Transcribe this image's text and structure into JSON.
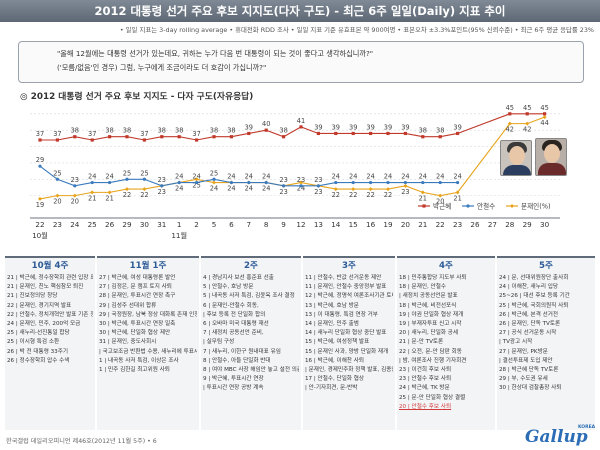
{
  "header": {
    "title": "2012 대통령 선거 주요 후보 지지도(다자 구도) - 최근 6주 일일(Daily) 지표 추이",
    "method_note": "• 일일 지표는 3-day rolling average • 휴대전화 RDD 조사 • 일일 지표 기준 유효표본 약 900여명 • 표본오차 ±3.3%포인트(95% 신뢰수준) • 최근 6주 평균 응답률 23%"
  },
  "question": {
    "line1": "\"올해 12월에는 대통령 선거가 있는데요, 귀하는 누가 다음 번 대통령이 되는 것이 좋다고 생각하십니까?\"",
    "line2": "('모름/없음'인 경우) 그럼, 누구에게 조금이라도 더 호감이 가십니까?\""
  },
  "chart_title": "◎ 2012 대통령 선거 주요 후보 지지도 - 다자 구도(자유응답)",
  "chart_data": {
    "type": "line",
    "categories": [
      "22",
      "23",
      "24",
      "25",
      "26",
      "29",
      "30",
      "31",
      "1",
      "2",
      "5",
      "6",
      "7",
      "8",
      "9",
      "12",
      "13",
      "14",
      "15",
      "16",
      "19",
      "20",
      "21",
      "22",
      "23",
      "26",
      "27",
      "28",
      "29",
      "30"
    ],
    "month_labels": [
      {
        "text": "10월",
        "index": 0
      },
      {
        "text": "11월",
        "index": 8
      }
    ],
    "ylim": [
      15,
      48
    ],
    "series": [
      {
        "name": "박근혜",
        "color": "#c0392b",
        "marker": "square",
        "values": [
          37,
          37,
          38,
          37,
          38,
          38,
          37,
          38,
          38,
          37,
          38,
          38,
          39,
          40,
          38,
          41,
          39,
          39,
          39,
          39,
          39,
          39,
          38,
          38,
          39,
          null,
          null,
          45,
          45,
          45
        ]
      },
      {
        "name": "문재인",
        "color": "#e8a31c",
        "marker": "diamond",
        "values": [
          19,
          20,
          20,
          21,
          21,
          22,
          22,
          23,
          24,
          25,
          24,
          24,
          24,
          24,
          23,
          24,
          23,
          22,
          22,
          22,
          22,
          23,
          21,
          20,
          21,
          null,
          null,
          42,
          42,
          44
        ]
      },
      {
        "name": "안철수",
        "color": "#3a7abd",
        "marker": "circle",
        "values": [
          29,
          25,
          23,
          24,
          24,
          25,
          25,
          23,
          24,
          24,
          25,
          24,
          24,
          24,
          23,
          23,
          23,
          24,
          24,
          24,
          24,
          24,
          24,
          24,
          24,
          null,
          null,
          null,
          null,
          null
        ]
      }
    ],
    "legend": [
      "박근혜",
      "안철수",
      "문재인(%)"
    ]
  },
  "weeks": [
    {
      "title": "10월 4주",
      "items": [
        "21 | 박근혜, 정수장학회 관련 입장 표명, 최필립 사퇴 촉구",
        "21 | 문재인, 친노 핵심참모 퇴진",
        "21 | 진보정의당 창당",
        "22 | 문재인, 경기지역 발표",
        "22 | 안철수, 정치개혁안 발표 기존 정치권 반발",
        "24 | 문재인, 민주, 200억 모금",
        "25 | 새누리-선진통일 합당",
        "25 | 이시형 특검 소환",
        "26 | 박 전 대통령 33주기",
        "26 | 정수장학회 압수 수색"
      ]
    },
    {
      "title": "11월 1주",
      "items": [
        "27 | 박근혜, 여성 대통령론 발언",
        "27 | 김정은, 문 캠프 토지 사퇴",
        "28 | 문재인, 투표시간 연장 촉구",
        "29 | 김성주 선대위 합류",
        "29 | 국정원장, 남북 정상 대화록 존재 인정, 비공개 입장 표명",
        "30 | 박근혜, 투표시간 연장 일축",
        "30 | 박근혜, 단일화 협상 제안",
        "31 | 문재인, 중도사회시",
        "   | 국고보조금 반환법 수용, 새누리에 투표시간 연장 촉구",
        "1 | 내곡동 사저 특검, 이상은 조사",
        "1 | 민주 김한길 최고위원 사퇴"
      ]
    },
    {
      "title": "2주",
      "items": [
        "4 | 경남지사 보선 홍준표 선출",
        "5 | 안철수, 호남 방문",
        "5 | 내곡동 사저 특검, 김윤옥 조사 결정",
        "6 | 문재인-안철수 회동,",
        "   | 후보 등록 전 단일화 합의",
        "6 | 오바마 미국 대통령 재선",
        "7 | 새정치 공동선언 준비,",
        "   | 실무팀 구성",
        "7 | 새누리, 이한구 원내대표 유임",
        "8 | 안철수, 아들 단일화 반대",
        "8 | 여야 MBC 사장 해임안 놓고 설전 의총 공방",
        "9 | 박근혜, 투표시간 연장",
        "   | 투표시간 연장 공방 계속"
      ]
    },
    {
      "title": "3주",
      "items": [
        "11 | 안철수, 반값 선거운동 제안",
        "11 | 문재인, 안철수 중앙정부 발표",
        "12 | 박근혜, 정명석 여론조사기관 토비성 발언에 법적 대응",
        "13 | 박근혜, 호남 방문",
        "13 | 이 대통령, 특검 연장 거부",
        "14 | 문재인, 민주 출범",
        "14 | 새누리 단일화 협상 중단 발표",
        "15 | 박근혜, 여성정책 발표",
        "15 | 문재인 사과, 양방 단일화 재개",
        "16 | 박근혜, 이해찬 사퇴",
        "   | 문재인, 경제민주화 정책 발표, 김종인 반발",
        "17 | 안철수, 단일화 협상",
        "   | 안-기자회견, 문-반박"
      ]
    },
    {
      "title": "4주",
      "items": [
        "18 | 민주통합당 지도부 사퇴",
        "18 | 문재인, 안철수",
        "   | 새정치 공동선언문 발표",
        "18 | 박근혜, 비전선포식",
        "19 | 야권 단일화 협상 재개",
        "19 | 부재자투표 신고 시작",
        "20 | 새누리, 단일화 공세",
        "21 | 문-안 TV토론",
        "22 | 오전, 문-안 담판 회동",
        "   | 밤, 여론조사 진행 기자회견",
        "23 | 이건희 후보 사퇴",
        "23 | 안철수 후보 사퇴",
        "24 | 박근혜, TK 방문",
        "25 | 문-안 단일화 협상 결렬",
        "20 | 안철수 후보 사퇴"
      ]
    },
    {
      "title": "5주",
      "items": [
        "24 | 문, 선대위원장단 출사회",
        "24 | 이해찬, 새누리 입당",
        "25~26 | 대선 후보 등록 기간",
        "25 | 박근혜, 국회의원직 사퇴",
        "26 | 박근혜, 본격 선거전",
        "26 | 문재인, 단독 TV토론",
        "27 | 공식 선거운동 시작",
        "   | TV광고 시작",
        "27 | 문재인, PK방문",
        "   | 결선투표제 도입 제안",
        "28 | 박근혜 단독 TV토론",
        "29 | 부, 수도권 유세",
        "30 | 한상대 검찰총장 사퇴"
      ]
    }
  ],
  "footer": {
    "source": "한국갤럽 데일리오피니언 제46호(2012년 11월 5주) • 6",
    "logo": "Gallup",
    "logo_small": "KOREA"
  }
}
